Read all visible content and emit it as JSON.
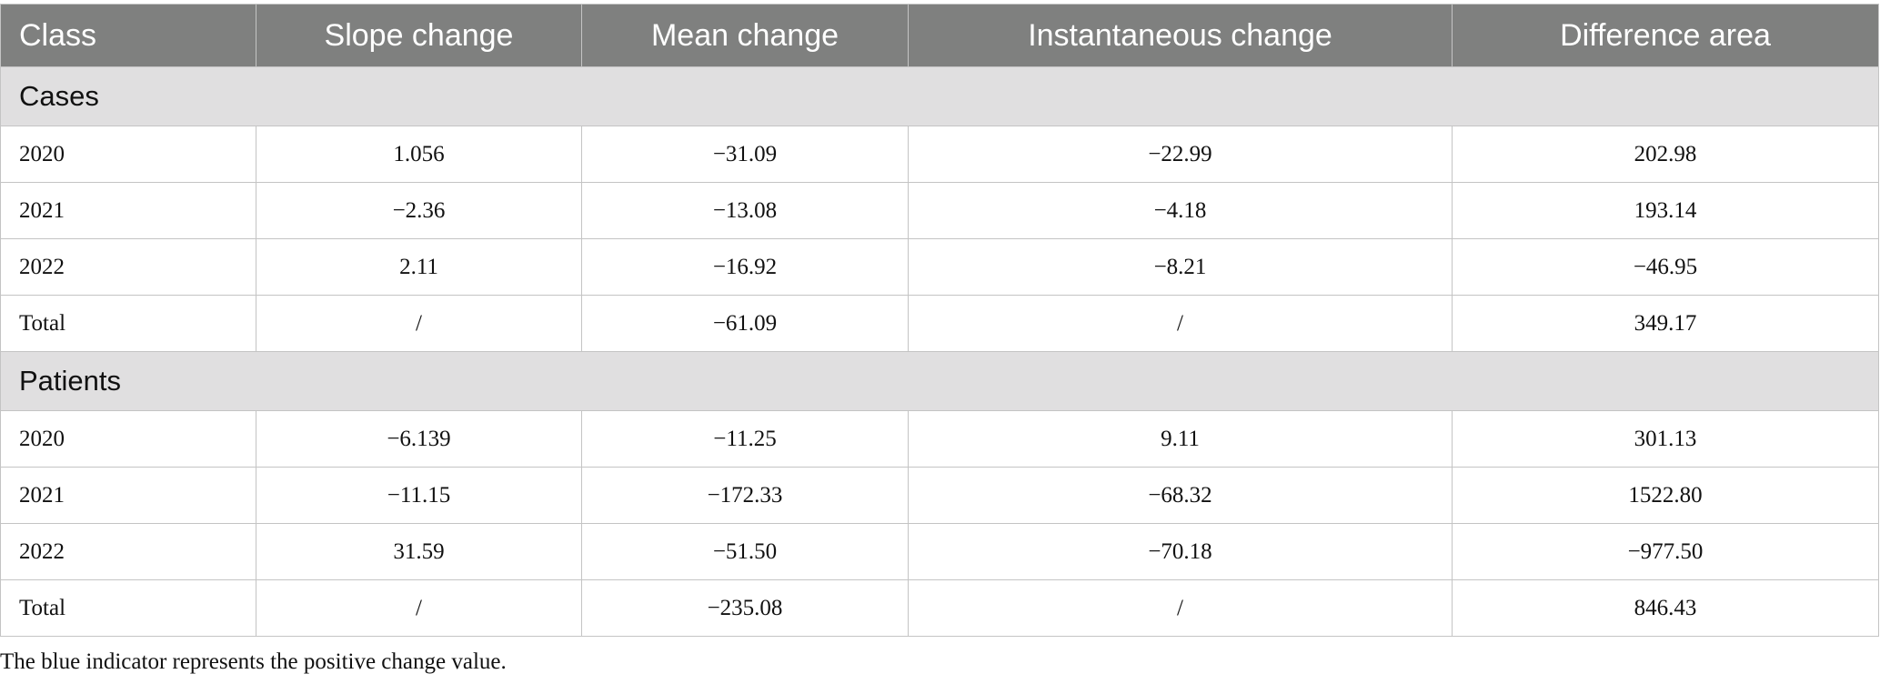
{
  "table": {
    "columns": [
      "Class",
      "Slope change",
      "Mean change",
      "Instantaneous change",
      "Difference area"
    ],
    "groups": [
      {
        "label": "Cases",
        "rows": [
          [
            "2020",
            "1.056",
            "−31.09",
            "−22.99",
            "202.98"
          ],
          [
            "2021",
            "−2.36",
            "−13.08",
            "−4.18",
            "193.14"
          ],
          [
            "2022",
            "2.11",
            "−16.92",
            "−8.21",
            "−46.95"
          ],
          [
            "Total",
            "/",
            "−61.09",
            "/",
            "349.17"
          ]
        ]
      },
      {
        "label": "Patients",
        "rows": [
          [
            "2020",
            "−6.139",
            "−11.25",
            "9.11",
            "301.13"
          ],
          [
            "2021",
            "−11.15",
            "−172.33",
            "−68.32",
            "1522.80"
          ],
          [
            "2022",
            "31.59",
            "−51.50",
            "−70.18",
            "−977.50"
          ],
          [
            "Total",
            "/",
            "−235.08",
            "/",
            "846.43"
          ]
        ]
      }
    ]
  },
  "footnote": "The blue indicator represents the positive change value."
}
